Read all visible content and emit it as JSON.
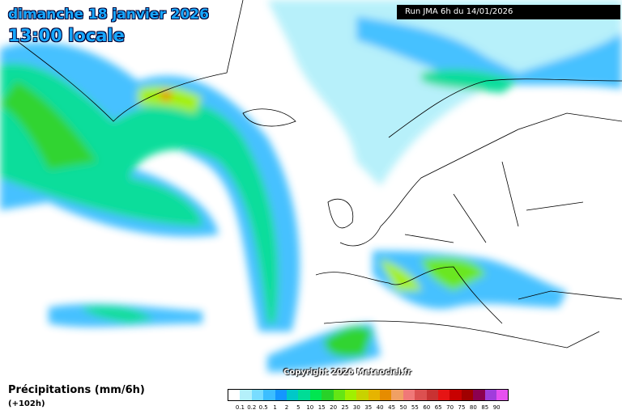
{
  "header": {
    "date": "dimanche 18 janvier 2026",
    "time": "13:00 locale",
    "run": "Run JMA 6h du 14/01/2026"
  },
  "copyright": "Copyright 2026 Meteociel.fr",
  "legend": {
    "title": "Précipitations (mm/6h)",
    "lead": "(+102h)",
    "colors": [
      "#ffffff",
      "#b4f0fa",
      "#78dcff",
      "#3cbeff",
      "#1496ff",
      "#00c8c8",
      "#00dc96",
      "#00e650",
      "#28d228",
      "#64e614",
      "#a0f000",
      "#c8d200",
      "#e6b400",
      "#e68c00",
      "#f0a064",
      "#f07878",
      "#dc5050",
      "#c83232",
      "#e61414",
      "#c80000",
      "#a00000",
      "#8c0050",
      "#a03cdc",
      "#e650f0"
    ],
    "labels": [
      "0.1",
      "0.2",
      "0.5",
      "1",
      "2",
      "5",
      "10",
      "15",
      "20",
      "25",
      "30",
      "35",
      "40",
      "45",
      "50",
      "55",
      "60",
      "65",
      "70",
      "75",
      "80",
      "85",
      "90"
    ]
  }
}
